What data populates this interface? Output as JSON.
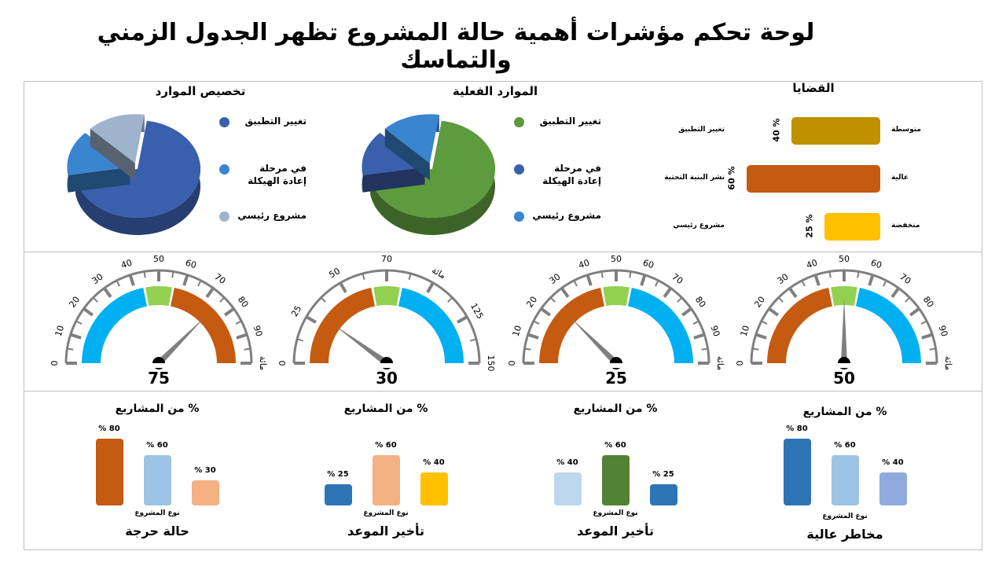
{
  "title": "لوحة تحكم مؤشرات أهمية حالة المشروع تظهر الجدول الزمني والتماسك",
  "colors": {
    "blue_dark": "#3a5fad",
    "blue": "#3a85d0",
    "blue_grey": "#9fb3cc",
    "green": "#5e9a3e",
    "gold": "#bf9000",
    "orange": "#c55a11",
    "yellow": "#ffc000",
    "cyan": "#00b0f0",
    "lime": "#92d050",
    "grey": "#7f7f7f",
    "light_blue": "#9dc3e6",
    "peach": "#f4b183",
    "pale_blue": "#bdd7ee",
    "green_dark": "#548235",
    "steel_blue": "#2e75b6",
    "lavender": "#8faadc"
  },
  "chart_data": [
    {
      "type": "pie",
      "title": "تخصيص الموارد",
      "legend": [
        "تغيير التطبيق",
        "في مرحلة إعادة الهيكلة",
        "مشروع رئيسي"
      ],
      "colors": [
        "#3a5fad",
        "#3a85d0",
        "#9fb3cc"
      ],
      "values": [
        70,
        15,
        15
      ]
    },
    {
      "type": "pie",
      "title": "الموارد الفعلية",
      "legend": [
        "تغيير التطبيق",
        "في مرحلة إعادة الهيكلة",
        "مشروع رئيسي"
      ],
      "colors": [
        "#5e9a3e",
        "#3a5fad",
        "#3a85d0"
      ],
      "values": [
        70,
        15,
        15
      ]
    },
    {
      "type": "bar",
      "title": "القضايا",
      "items": [
        {
          "level": "متوسطة",
          "name": "تغيير التطبيق",
          "value": 40,
          "value_label": "40 %",
          "color": "#bf9000"
        },
        {
          "level": "عالية",
          "name": "نشر البنية التحتية",
          "value": 60,
          "value_label": "60 %",
          "color": "#c55a11"
        },
        {
          "level": "منخفضة",
          "name": "مشروع رئيسي",
          "value": 25,
          "value_label": "25 %",
          "color": "#ffc000"
        }
      ]
    },
    {
      "type": "gauge",
      "gauges": [
        {
          "value": 75,
          "max": 100,
          "ticks": [
            "0",
            "10",
            "20",
            "30",
            "40",
            "50",
            "60",
            "70",
            "80",
            "90",
            "مائة"
          ],
          "center_label": "50",
          "left_band": "#00b0f0",
          "right_band": "#c55a11"
        },
        {
          "value": 30,
          "max": 150,
          "ticks": [
            "0",
            "25",
            "50",
            "70",
            "مائة",
            "125",
            "150"
          ],
          "center_label": "70",
          "left_band": "#c55a11",
          "right_band": "#00b0f0"
        },
        {
          "value": 25,
          "max": 100,
          "ticks": [
            "0",
            "10",
            "20",
            "30",
            "40",
            "50",
            "60",
            "70",
            "80",
            "90",
            "مائة"
          ],
          "center_label": "50",
          "left_band": "#c55a11",
          "right_band": "#00b0f0"
        },
        {
          "value": 50,
          "max": 100,
          "ticks": [
            "0",
            "10",
            "20",
            "30",
            "40",
            "50",
            "60",
            "70",
            "80",
            "90",
            "مائة"
          ],
          "center_label": "50",
          "left_band": "#c55a11",
          "right_band": "#00b0f0"
        }
      ]
    },
    {
      "type": "bar",
      "panels": [
        {
          "title": "% من المشاريع",
          "xlabel": "نوع المشروع",
          "footer": "حالة حرجة",
          "bars": [
            {
              "value": 80,
              "label": "% 80",
              "color": "#c55a11"
            },
            {
              "value": 60,
              "label": "% 60",
              "color": "#9dc3e6"
            },
            {
              "value": 30,
              "label": "% 30",
              "color": "#f4b183"
            }
          ]
        },
        {
          "title": "% من المشاريع",
          "xlabel": "نوع المشروع",
          "footer": "تأخير الموعد",
          "bars": [
            {
              "value": 25,
              "label": "% 25",
              "color": "#2e75b6"
            },
            {
              "value": 60,
              "label": "% 60",
              "color": "#f4b183"
            },
            {
              "value": 40,
              "label": "% 40",
              "color": "#ffc000"
            }
          ]
        },
        {
          "title": "% من المشاريع",
          "xlabel": "نوع المشروع",
          "footer": "تأخير الموعد",
          "bars": [
            {
              "value": 40,
              "label": "% 40",
              "color": "#bdd7ee"
            },
            {
              "value": 60,
              "label": "% 60",
              "color": "#548235"
            },
            {
              "value": 25,
              "label": "% 25",
              "color": "#2e75b6"
            }
          ]
        },
        {
          "title": "% من المشاريع",
          "xlabel": "نوع المشروع",
          "footer": "مخاطر عالية",
          "bars": [
            {
              "value": 80,
              "label": "% 80",
              "color": "#2e75b6"
            },
            {
              "value": 60,
              "label": "% 60",
              "color": "#9dc3e6"
            },
            {
              "value": 40,
              "label": "% 40",
              "color": "#8faadc"
            }
          ]
        }
      ]
    }
  ]
}
